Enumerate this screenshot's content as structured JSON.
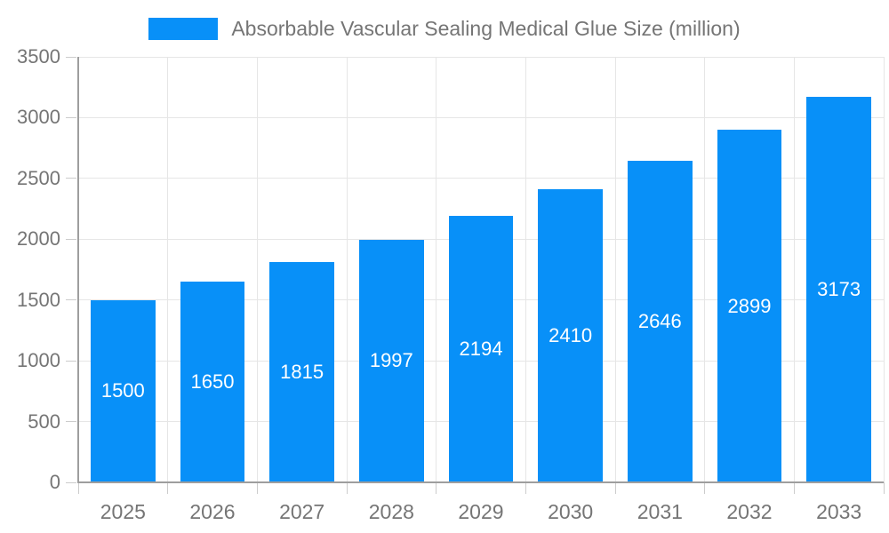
{
  "legend": {
    "label": "Absorbable Vascular Sealing Medical Glue Size (million)"
  },
  "colors": {
    "bar": "#0890f8",
    "gridline": "#e6e6e6",
    "tick": "#cccccc",
    "axis": "#9e9e9e",
    "axis_text": "#757575",
    "value_label": "#ffffff",
    "background": "#ffffff"
  },
  "chart_data": {
    "type": "bar",
    "title": "Absorbable Vascular Sealing Medical Glue Size (million)",
    "categories": [
      "2025",
      "2026",
      "2027",
      "2028",
      "2029",
      "2030",
      "2031",
      "2032",
      "2033"
    ],
    "values": [
      1500,
      1650,
      1815,
      1997,
      2194,
      2410,
      2646,
      2899,
      3173
    ],
    "xlabel": "",
    "ylabel": "",
    "ylim": [
      0,
      3500
    ],
    "ytick_step": 500,
    "yticks": [
      "0",
      "500",
      "1000",
      "1500",
      "2000",
      "2500",
      "3000",
      "3500"
    ],
    "grid": true,
    "legend_position": "top",
    "value_labels": "inside-center",
    "bar_width_fraction": 0.725
  }
}
